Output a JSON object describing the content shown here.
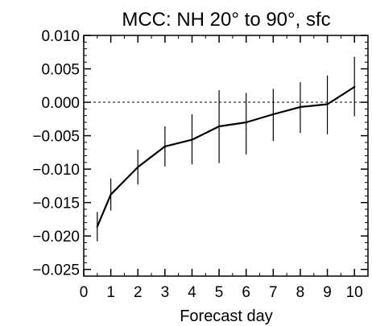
{
  "chart_data": {
    "type": "line",
    "title": "MCC: NH 20° to 90°, sfc",
    "xlabel": "Forecast day",
    "ylabel": "",
    "xlim": [
      0,
      10.5
    ],
    "ylim": [
      -0.026,
      0.01
    ],
    "x_ticks": [
      0,
      1,
      2,
      3,
      4,
      5,
      6,
      7,
      8,
      9,
      10
    ],
    "x_tick_labels": [
      "0",
      "1",
      "2",
      "3",
      "4",
      "5",
      "6",
      "7",
      "8",
      "9",
      "10"
    ],
    "y_ticks": [
      0.01,
      0.005,
      0.0,
      -0.005,
      -0.01,
      -0.015,
      -0.02,
      -0.025
    ],
    "y_tick_labels": [
      "0.010",
      "0.005",
      "0.000",
      "−0.005",
      "−0.010",
      "−0.015",
      "−0.020",
      "−0.025"
    ],
    "reference_line": {
      "y": 0.0,
      "style": "dashed"
    },
    "grid": false,
    "legend": "none",
    "series": [
      {
        "x": [
          0.5,
          1,
          2,
          3,
          4,
          5,
          6,
          7,
          8,
          9,
          10
        ],
        "y": [
          -0.0186,
          -0.0138,
          -0.0097,
          -0.0066,
          -0.0056,
          -0.0036,
          -0.003,
          -0.0018,
          -0.0007,
          -0.0003,
          0.0023
        ],
        "err_low": [
          -0.0208,
          -0.0162,
          -0.0123,
          -0.0096,
          -0.0093,
          -0.0091,
          -0.0078,
          -0.0058,
          -0.0046,
          -0.0048,
          -0.0021
        ],
        "err_high": [
          -0.0164,
          -0.0114,
          -0.0071,
          -0.0036,
          -0.0018,
          0.0018,
          0.0014,
          0.002,
          0.003,
          0.004,
          0.0068
        ]
      }
    ],
    "colors": {
      "line": "#000000",
      "axes": "#000000",
      "background": "#ffffff"
    }
  }
}
